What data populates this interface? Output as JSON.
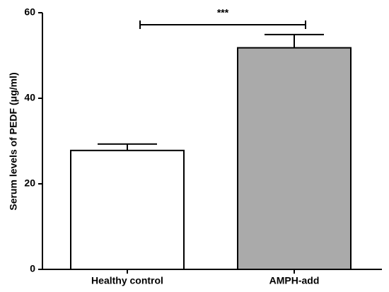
{
  "chart_data": {
    "type": "bar",
    "y_label": "Serum levels of PEDF (μg/ml)",
    "categories": [
      "Healthy control",
      "AMPH-add"
    ],
    "values": [
      27.8,
      51.8
    ],
    "errors": [
      1.5,
      3.1
    ],
    "colors": [
      "#ffffff",
      "#aaaaaa"
    ],
    "ylim": [
      0,
      60
    ],
    "yticks": [
      0,
      20,
      40,
      60
    ],
    "annotation": "***"
  }
}
